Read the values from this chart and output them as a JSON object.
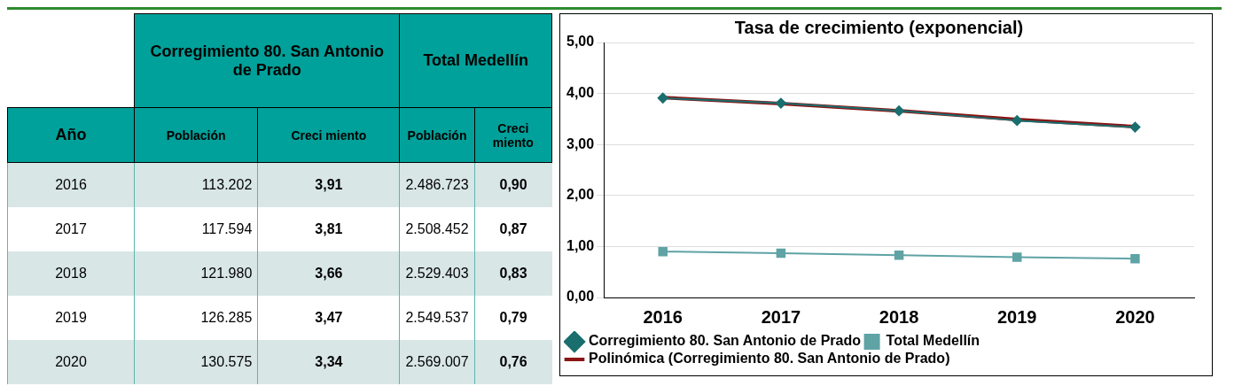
{
  "chart_data": [
    {
      "type": "heatmap",
      "ylabel": "Año",
      "annotations": [
        "Corregimiento 80. San Antonio de Prado",
        "Total Medellín"
      ],
      "categories": [
        "Población",
        "Creci miento",
        "Población",
        "Creci miento"
      ],
      "y_categories": [
        "2016",
        "2017",
        "2018",
        "2019",
        "2020"
      ],
      "cells": [
        [
          113202,
          3.91,
          2486723,
          0.9
        ],
        [
          117594,
          3.81,
          2508452,
          0.87
        ],
        [
          121980,
          3.66,
          2529403,
          0.83
        ],
        [
          126285,
          3.47,
          2549537,
          0.79
        ],
        [
          130575,
          3.34,
          2569007,
          0.76
        ]
      ],
      "cell_labels": [
        [
          "113.202",
          "3,91",
          "2.486.723",
          "0,90"
        ],
        [
          "117.594",
          "3,81",
          "2.508.452",
          "0,87"
        ],
        [
          "121.980",
          "3,66",
          "2.529.403",
          "0,83"
        ],
        [
          "126.285",
          "3,47",
          "2.549.537",
          "0,79"
        ],
        [
          "130.575",
          "3,34",
          "2.569.007",
          "0,76"
        ]
      ]
    },
    {
      "type": "line",
      "title": "Tasa de crecimiento (exponencial)",
      "categories": [
        "2016",
        "2017",
        "2018",
        "2019",
        "2020"
      ],
      "ylim": [
        0,
        5
      ],
      "yticks": [
        {
          "value": 0,
          "label": "0,00"
        },
        {
          "value": 1,
          "label": "1,00"
        },
        {
          "value": 2,
          "label": "2,00"
        },
        {
          "value": 3,
          "label": "3,00"
        },
        {
          "value": 4,
          "label": "4,00"
        },
        {
          "value": 5,
          "label": "5,00"
        }
      ],
      "grid": "y",
      "legend": "bottom",
      "series": [
        {
          "name": "Corregimiento 80. San Antonio de Prado",
          "color": "#1a6e6e",
          "marker": "diamond",
          "values": [
            3.91,
            3.81,
            3.66,
            3.47,
            3.34
          ]
        },
        {
          "name": "Total Medellín",
          "color": "#5fa3a5",
          "marker": "square",
          "values": [
            0.9,
            0.87,
            0.83,
            0.79,
            0.76
          ]
        },
        {
          "name": "Polinómica (Corregimiento 80. San Antonio de Prado)",
          "color": "#8b1414",
          "marker": "none",
          "values": [
            3.92,
            3.8,
            3.66,
            3.49,
            3.35
          ]
        }
      ]
    }
  ]
}
